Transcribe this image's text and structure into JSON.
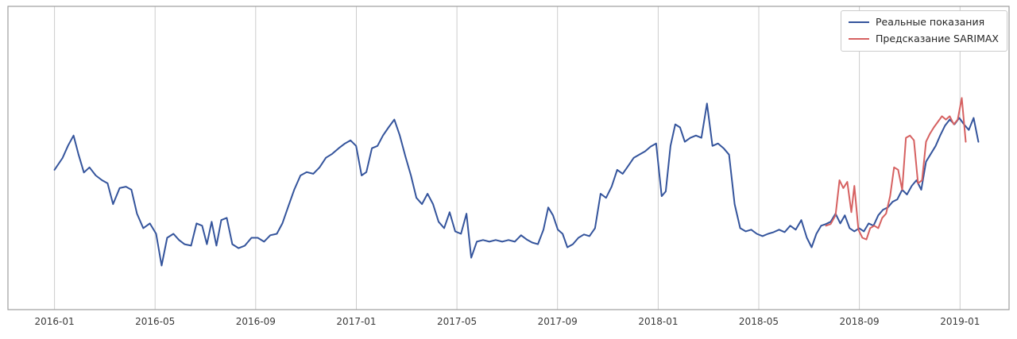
{
  "chart_data": {
    "type": "line",
    "title": "",
    "xlabel": "",
    "ylabel": "",
    "x_unit": "months since 2016-01",
    "xlim": [
      -1.85,
      37.95
    ],
    "ylim": [
      0,
      146
    ],
    "grid": "vertical-only",
    "legend_position": "upper-right",
    "xticks": {
      "positions": [
        0,
        4,
        8,
        12,
        16,
        20,
        24,
        28,
        32,
        36
      ],
      "labels": [
        "2016-01",
        "2016-05",
        "2016-09",
        "2017-01",
        "2017-05",
        "2017-09",
        "2018-01",
        "2018-05",
        "2018-09",
        "2019-01"
      ]
    },
    "series": [
      {
        "id": "real",
        "name": "Реальные показания",
        "color": "#34549C",
        "x": [
          0,
          0.32,
          0.54,
          0.76,
          0.95,
          1.17,
          1.39,
          1.64,
          1.89,
          2.11,
          2.33,
          2.59,
          2.84,
          3.06,
          3.28,
          3.53,
          3.79,
          4.04,
          4.26,
          4.48,
          4.73,
          4.95,
          5.17,
          5.43,
          5.65,
          5.87,
          6.06,
          6.25,
          6.44,
          6.63,
          6.85,
          7.07,
          7.32,
          7.57,
          7.83,
          8.08,
          8.33,
          8.58,
          8.84,
          9.06,
          9.28,
          9.53,
          9.78,
          10.03,
          10.29,
          10.54,
          10.79,
          11.04,
          11.3,
          11.55,
          11.77,
          11.99,
          12.21,
          12.4,
          12.62,
          12.84,
          13.06,
          13.28,
          13.51,
          13.73,
          13.95,
          14.17,
          14.39,
          14.61,
          14.83,
          15.05,
          15.27,
          15.49,
          15.71,
          15.93,
          16.16,
          16.38,
          16.57,
          16.79,
          17.04,
          17.29,
          17.54,
          17.8,
          18.05,
          18.3,
          18.55,
          18.77,
          18.99,
          19.22,
          19.44,
          19.63,
          19.82,
          20.01,
          20.2,
          20.39,
          20.61,
          20.83,
          21.05,
          21.27,
          21.49,
          21.71,
          21.93,
          22.15,
          22.37,
          22.59,
          22.81,
          23.03,
          23.25,
          23.48,
          23.7,
          23.92,
          24.14,
          24.3,
          24.49,
          24.68,
          24.87,
          25.06,
          25.28,
          25.5,
          25.72,
          25.94,
          26.16,
          26.38,
          26.6,
          26.82,
          27.04,
          27.26,
          27.48,
          27.7,
          27.92,
          28.15,
          28.37,
          28.59,
          28.81,
          29.03,
          29.25,
          29.47,
          29.69,
          29.91,
          30.1,
          30.29,
          30.48,
          30.67,
          30.86,
          31.05,
          31.24,
          31.42,
          31.61,
          31.8,
          31.99,
          32.18,
          32.37,
          32.56,
          32.75,
          32.94,
          33.13,
          33.32,
          33.51,
          33.7,
          33.89,
          34.08,
          34.27,
          34.46,
          34.65,
          34.84,
          35.03,
          35.21,
          35.4,
          35.59,
          35.78,
          35.97,
          36.16,
          36.35,
          36.54,
          36.73
        ],
        "y": [
          67.3,
          73.0,
          79.0,
          83.8,
          75.0,
          66.0,
          68.5,
          64.6,
          62.3,
          60.8,
          50.8,
          58.5,
          59.2,
          57.7,
          46.2,
          39.2,
          41.5,
          36.5,
          21.2,
          34.6,
          36.5,
          33.5,
          31.5,
          30.8,
          41.5,
          40.4,
          31.5,
          42.3,
          30.8,
          43.1,
          44.2,
          31.5,
          29.6,
          30.8,
          34.6,
          34.6,
          32.7,
          35.8,
          36.5,
          41.5,
          49.2,
          57.7,
          64.6,
          66.2,
          65.4,
          68.5,
          73.1,
          75.0,
          77.7,
          80.0,
          81.5,
          78.8,
          64.6,
          66.2,
          77.7,
          78.8,
          83.8,
          87.7,
          91.5,
          83.8,
          73.8,
          64.6,
          53.8,
          50.8,
          55.8,
          50.8,
          42.3,
          39.2,
          46.9,
          37.7,
          36.5,
          46.2,
          25.0,
          32.7,
          33.5,
          32.7,
          33.5,
          32.7,
          33.5,
          32.7,
          35.8,
          33.8,
          32.3,
          31.5,
          38.5,
          49.2,
          45.4,
          38.5,
          36.5,
          30.0,
          31.5,
          34.6,
          36.2,
          35.4,
          39.2,
          55.8,
          53.8,
          59.2,
          67.3,
          65.4,
          69.2,
          73.1,
          74.6,
          76.2,
          78.5,
          80.0,
          54.6,
          56.9,
          78.8,
          89.2,
          87.7,
          80.8,
          82.7,
          83.8,
          82.7,
          99.2,
          78.8,
          80.0,
          77.7,
          74.6,
          50.8,
          39.2,
          37.7,
          38.5,
          36.5,
          35.4,
          36.5,
          37.3,
          38.5,
          37.3,
          40.4,
          38.5,
          43.1,
          34.6,
          30.0,
          36.5,
          40.4,
          41.2,
          42.3,
          46.2,
          41.5,
          45.4,
          39.2,
          37.7,
          39.2,
          37.7,
          41.5,
          40.4,
          45.4,
          48.1,
          49.2,
          51.9,
          53.1,
          57.7,
          55.4,
          59.6,
          62.3,
          57.7,
          71.2,
          75.0,
          78.8,
          83.8,
          88.5,
          91.5,
          89.2,
          92.3,
          89.2,
          86.5,
          92.3,
          80.8
        ]
      },
      {
        "id": "sarimax",
        "name": "Предсказание SARIMAX",
        "color": "#D66161",
        "x": [
          30.67,
          30.86,
          31.05,
          31.21,
          31.36,
          31.52,
          31.68,
          31.8,
          31.96,
          32.12,
          32.28,
          32.43,
          32.59,
          32.75,
          32.91,
          33.06,
          33.22,
          33.38,
          33.54,
          33.7,
          33.85,
          34.01,
          34.17,
          34.33,
          34.49,
          34.65,
          34.8,
          34.96,
          35.12,
          35.28,
          35.44,
          35.59,
          35.75,
          35.91,
          36.07,
          36.23
        ],
        "y": [
          40.4,
          41.2,
          45.4,
          62.3,
          58.5,
          61.5,
          46.9,
          59.6,
          38.5,
          34.6,
          33.8,
          39.2,
          40.4,
          39.2,
          44.2,
          46.2,
          54.6,
          68.5,
          67.3,
          57.7,
          82.7,
          83.8,
          81.5,
          60.8,
          62.3,
          80.8,
          84.6,
          87.7,
          90.4,
          93.1,
          91.5,
          93.1,
          89.2,
          91.5,
          101.9,
          80.8
        ]
      }
    ]
  },
  "colors": {
    "background": "#ffffff",
    "grid": "#cccccc",
    "frame": "#9e9e9e",
    "tick_text": "#3a3a3a",
    "legend_border": "#cccccc"
  }
}
